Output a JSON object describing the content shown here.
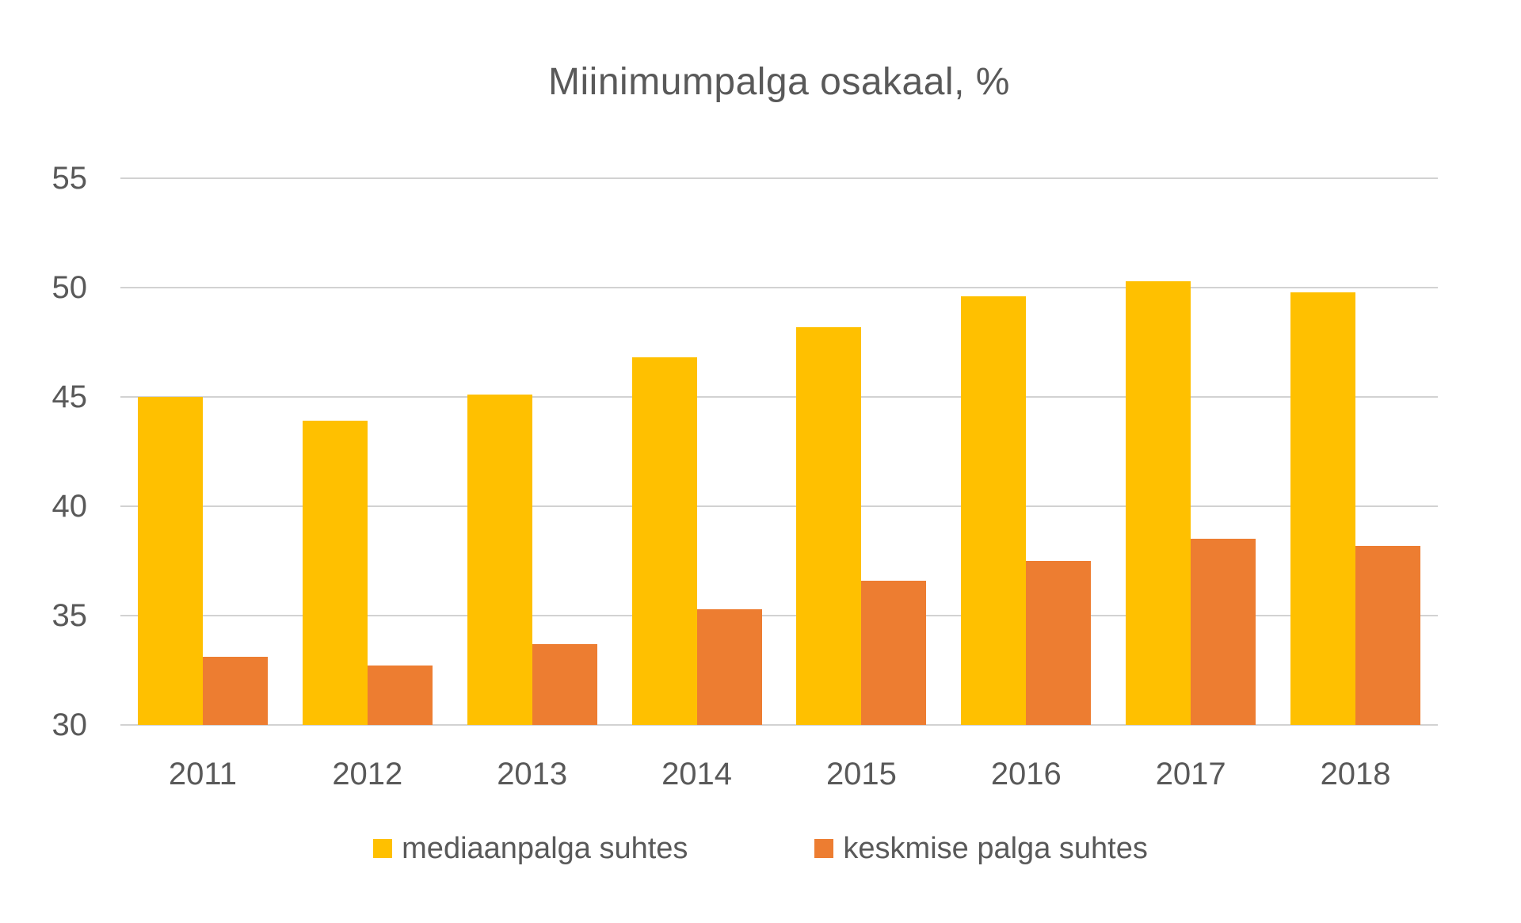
{
  "chart_data": {
    "type": "bar",
    "title": "Miinimumpalga osakaal, %",
    "categories": [
      "2011",
      "2012",
      "2013",
      "2014",
      "2015",
      "2016",
      "2017",
      "2018"
    ],
    "series": [
      {
        "name": "mediaanpalga suhtes",
        "color": "#FFC000",
        "values": [
          45.0,
          43.9,
          45.1,
          46.8,
          48.2,
          49.6,
          50.3,
          49.8
        ]
      },
      {
        "name": "keskmise palga suhtes",
        "color": "#ED7D31",
        "values": [
          33.1,
          32.7,
          33.7,
          35.3,
          36.6,
          37.5,
          38.5,
          38.2
        ]
      }
    ],
    "xlabel": "",
    "ylabel": "",
    "ylim": [
      30,
      55
    ],
    "yticks": [
      30,
      35,
      40,
      45,
      50,
      55
    ],
    "grid": true,
    "legend_position": "bottom",
    "colors": {
      "text": "#595959",
      "gridline": "#D2D2D2"
    }
  }
}
